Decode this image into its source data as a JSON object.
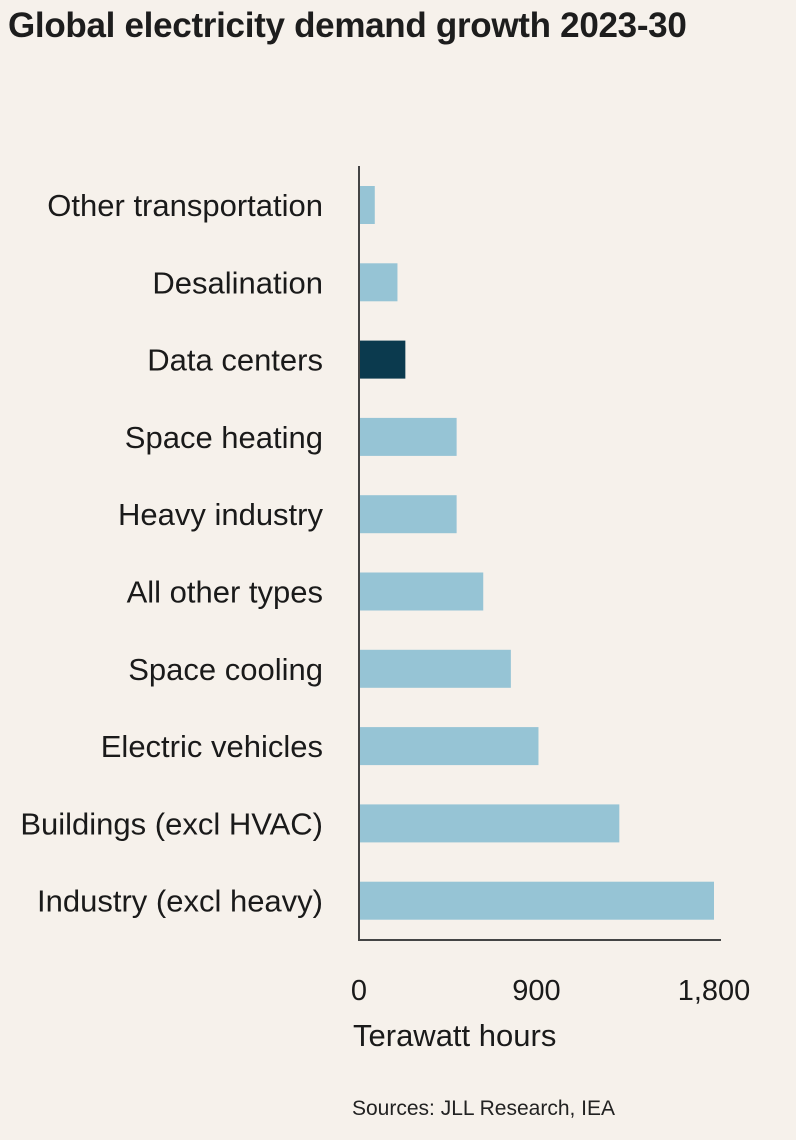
{
  "chart_data": {
    "type": "bar",
    "orientation": "horizontal",
    "title": "Global electricity demand growth 2023-30",
    "categories": [
      "Other transportation",
      "Desalination",
      "Data centers",
      "Space heating",
      "Heavy industry",
      "All other types",
      "Space cooling",
      "Electric vehicles",
      "Buildings (excl HVAC)",
      "Industry (excl heavy)"
    ],
    "values": [
      80,
      195,
      235,
      495,
      495,
      630,
      770,
      910,
      1320,
      1800
    ],
    "highlight_category": "Data centers",
    "colors": {
      "bar": "#96c4d5",
      "highlight": "#0b3a4e",
      "axis": "#444444"
    },
    "xlabel": "Terawatt hours",
    "ylabel": "",
    "xlim": [
      0,
      1800
    ],
    "xticks": [
      0,
      900,
      1800
    ],
    "xtick_labels": [
      "0",
      "900",
      "1,800"
    ],
    "source": "Sources: JLL Research, IEA"
  }
}
